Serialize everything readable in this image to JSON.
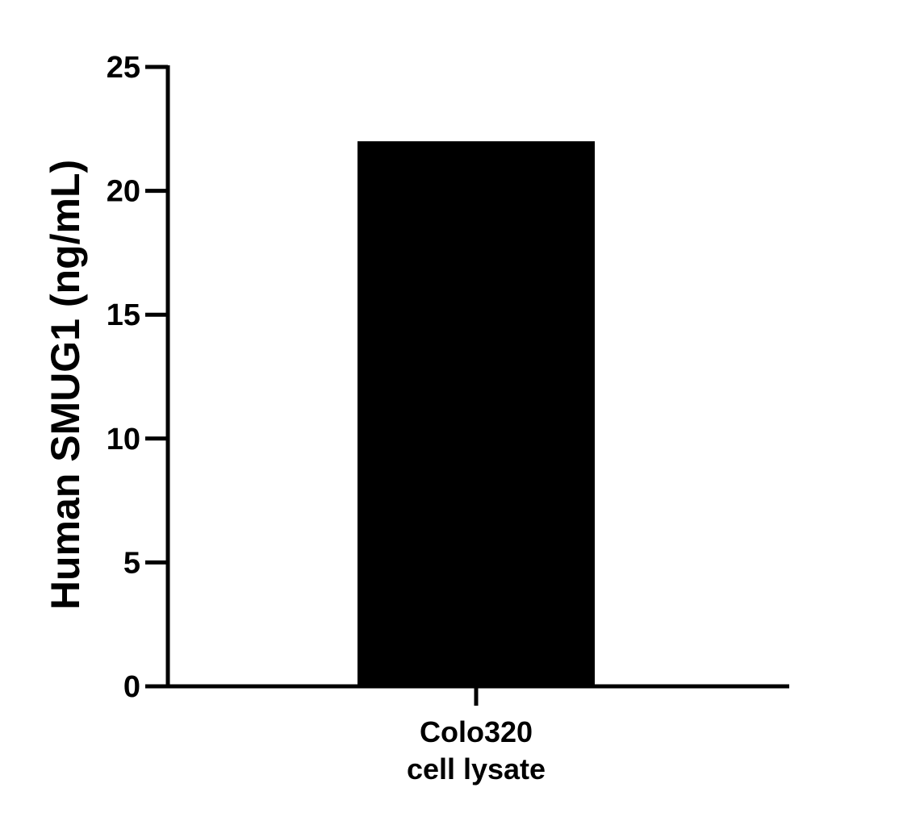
{
  "chart_data": {
    "type": "bar",
    "categories": [
      [
        "Colo320",
        "cell lysate"
      ]
    ],
    "values": [
      22
    ],
    "title": "",
    "xlabel": "",
    "ylabel": "Human SMUG1 (ng/mL)",
    "ylim": [
      0,
      25
    ],
    "yticks": [
      0,
      5,
      10,
      15,
      20,
      25
    ],
    "grid": false,
    "legend": false,
    "bar_color": "#000000",
    "axis_color": "#000000"
  }
}
